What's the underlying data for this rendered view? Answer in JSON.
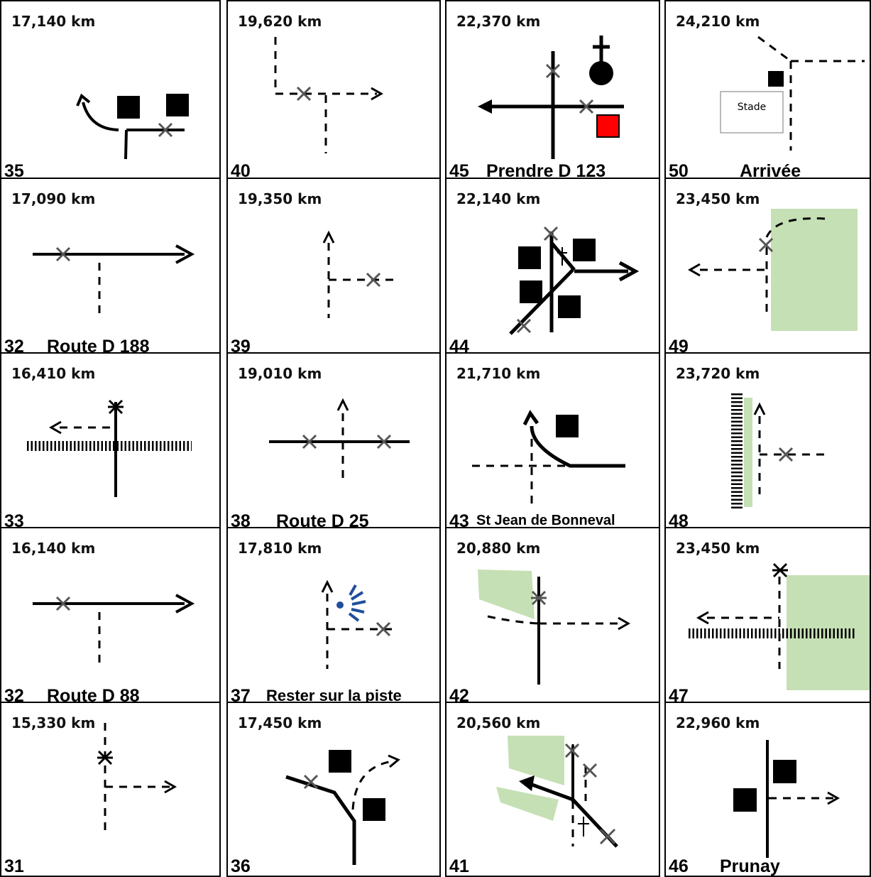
{
  "cells": [
    {
      "num": "35",
      "km": "17,140 km",
      "label": ""
    },
    {
      "num": "40",
      "km": "19,620 km",
      "label": ""
    },
    {
      "num": "45",
      "km": "22,370 km",
      "label": "Prendre D 123"
    },
    {
      "num": "50",
      "km": "24,210 km",
      "label": "Arrivée",
      "inner_text": "Stade"
    },
    {
      "num": "32",
      "km": "17,090 km",
      "label": "Route D 188"
    },
    {
      "num": "39",
      "km": "19,350 km",
      "label": ""
    },
    {
      "num": "44",
      "km": "22,140 km",
      "label": ""
    },
    {
      "num": "49",
      "km": "23,450 km",
      "label": ""
    },
    {
      "num": "33",
      "km": "16,410 km",
      "label": ""
    },
    {
      "num": "38",
      "km": "19,010 km",
      "label": "Route D 25"
    },
    {
      "num": "43",
      "km": "21,710 km",
      "label": "St Jean de Bonneval"
    },
    {
      "num": "48",
      "km": "23,720 km",
      "label": ""
    },
    {
      "num": "32",
      "km": "16,140 km",
      "label": "Route D 88"
    },
    {
      "num": "37",
      "km": "17,810 km",
      "label": "Rester sur la piste"
    },
    {
      "num": "42",
      "km": "20,880 km",
      "label": ""
    },
    {
      "num": "47",
      "km": "23,450 km",
      "label": ""
    },
    {
      "num": "31",
      "km": "15,330 km",
      "label": ""
    },
    {
      "num": "36",
      "km": "17,450 km",
      "label": ""
    },
    {
      "num": "41",
      "km": "20,560 km",
      "label": ""
    },
    {
      "num": "46",
      "km": "22,960 km",
      "label": "Prunay"
    }
  ],
  "colors": {
    "line": "#000000",
    "cross": "#555555",
    "green": "#c5e0b4",
    "red": "#ff0000",
    "blue": "#1f4e9c"
  }
}
